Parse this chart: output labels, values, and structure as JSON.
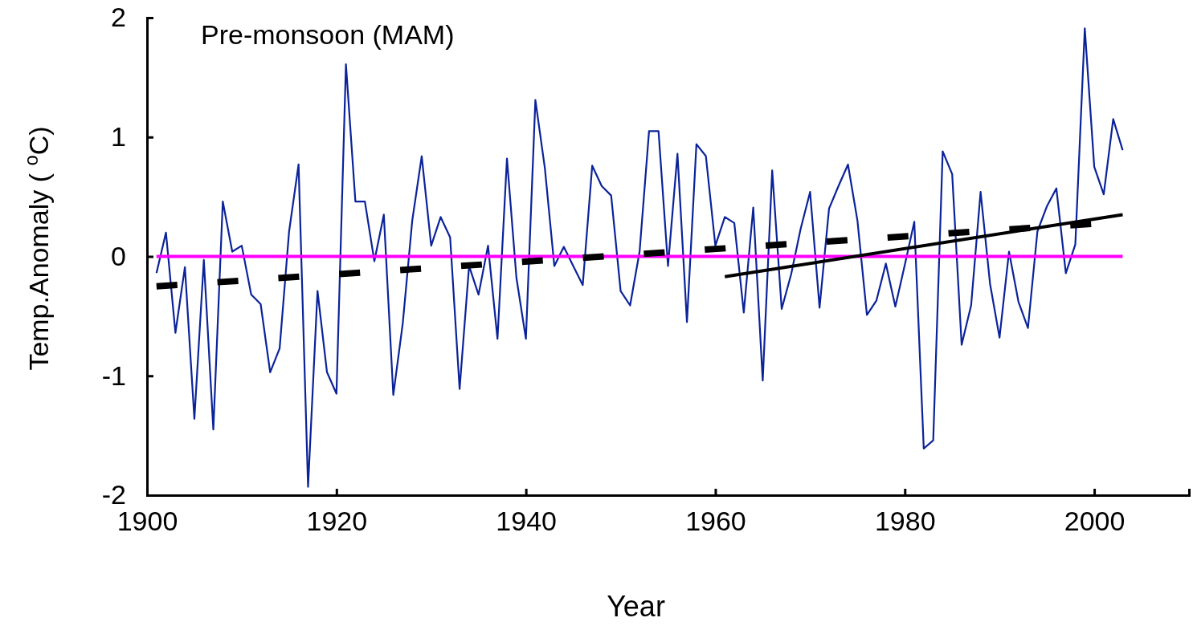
{
  "chart_data": {
    "type": "line",
    "title": "Pre-monsoon (MAM)",
    "xlabel": "Year",
    "ylabel": "Temp.Anomaly ( $^{o}$C)",
    "xlim": [
      1900,
      2010
    ],
    "xticks": [
      1900,
      1920,
      1940,
      1960,
      1980,
      2000
    ],
    "ylim": [
      -2,
      2
    ],
    "yticks": [
      -2,
      -1,
      0,
      1,
      2
    ],
    "grid": false,
    "marker": "none",
    "series": [
      {
        "color": "#0b2399",
        "line_style": "solid",
        "x": [
          1901,
          1902,
          1903,
          1904,
          1905,
          1906,
          1907,
          1908,
          1909,
          1910,
          1911,
          1912,
          1913,
          1914,
          1915,
          1916,
          1917,
          1918,
          1919,
          1920,
          1921,
          1922,
          1923,
          1924,
          1925,
          1926,
          1927,
          1928,
          1929,
          1930,
          1931,
          1932,
          1933,
          1934,
          1935,
          1936,
          1937,
          1938,
          1939,
          1940,
          1941,
          1942,
          1943,
          1944,
          1945,
          1946,
          1947,
          1948,
          1949,
          1950,
          1951,
          1952,
          1953,
          1954,
          1955,
          1956,
          1957,
          1958,
          1959,
          1960,
          1961,
          1962,
          1963,
          1964,
          1965,
          1966,
          1967,
          1968,
          1969,
          1970,
          1971,
          1972,
          1973,
          1974,
          1975,
          1976,
          1977,
          1978,
          1979,
          1980,
          1981,
          1982,
          1983,
          1984,
          1985,
          1986,
          1987,
          1988,
          1989,
          1990,
          1991,
          1992,
          1993,
          1994,
          1995,
          1996,
          1997,
          1998,
          1999,
          2000,
          2001,
          2002,
          2003
        ],
        "values": [
          -0.14,
          0.2,
          -0.64,
          -0.09,
          -1.36,
          -0.03,
          -1.45,
          0.46,
          0.04,
          0.09,
          -0.32,
          -0.4,
          -0.97,
          -0.77,
          0.21,
          0.77,
          -1.93,
          -0.29,
          -0.97,
          -1.15,
          1.61,
          0.46,
          0.46,
          -0.04,
          0.35,
          -1.16,
          -0.56,
          0.3,
          0.84,
          0.09,
          0.33,
          0.16,
          -1.11,
          -0.08,
          -0.32,
          0.09,
          -0.69,
          0.82,
          -0.18,
          -0.69,
          1.31,
          0.74,
          -0.08,
          0.08,
          -0.08,
          -0.24,
          0.76,
          0.59,
          0.51,
          -0.29,
          -0.41,
          0.04,
          1.05,
          1.05,
          -0.08,
          0.86,
          -0.55,
          0.94,
          0.84,
          0.09,
          0.33,
          0.28,
          -0.47,
          0.41,
          -1.04,
          0.72,
          -0.44,
          -0.15,
          0.23,
          0.54,
          -0.43,
          0.4,
          0.59,
          0.77,
          0.3,
          -0.49,
          -0.37,
          -0.06,
          -0.42,
          -0.07,
          0.29,
          -1.61,
          -1.54,
          0.88,
          0.69,
          -0.74,
          -0.41,
          0.54,
          -0.23,
          -0.68,
          0.04,
          -0.38,
          -0.6,
          0.21,
          0.42,
          0.57,
          -0.14,
          0.1,
          1.91,
          0.75,
          0.52,
          1.15,
          0.89
        ]
      },
      {
        "color": "#ff00ff",
        "line_style": "solid",
        "x": [
          1901,
          2003
        ],
        "values": [
          0,
          0
        ]
      },
      {
        "color": "#000000",
        "line_style": "dashed",
        "x": [
          1901,
          2003
        ],
        "values": [
          -0.25,
          0.29
        ]
      },
      {
        "color": "#000000",
        "line_style": "solid",
        "x": [
          1961,
          2003
        ],
        "values": [
          -0.17,
          0.35
        ]
      }
    ]
  }
}
